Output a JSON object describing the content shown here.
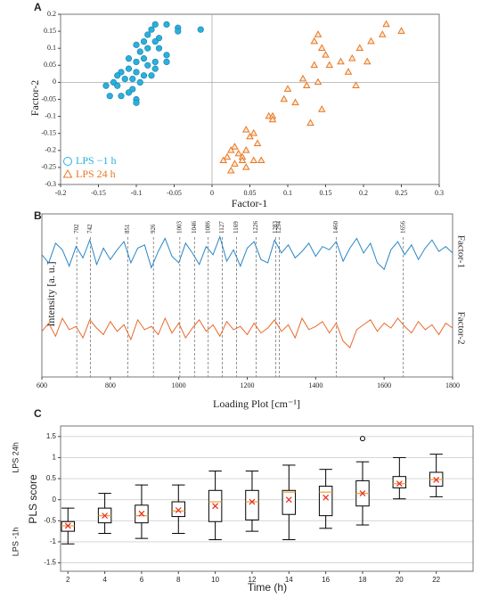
{
  "chart_data": [
    {
      "type": "scatter",
      "panel_label": "A",
      "x_label": "Factor-1",
      "y_label": "Factor-2",
      "xlim": [
        -0.2,
        0.3
      ],
      "xticks": [
        -0.2,
        -0.15,
        -0.1,
        -0.05,
        0,
        0.05,
        0.1,
        0.15,
        0.2,
        0.25,
        0.3
      ],
      "ylim": [
        -0.3,
        0.2
      ],
      "yticks": [
        -0.3,
        -0.25,
        -0.2,
        -0.15,
        -0.1,
        -0.05,
        0,
        0.05,
        0.1,
        0.15,
        0.2
      ],
      "legend": "lower left",
      "series": [
        {
          "name": "LPS −1 h",
          "color": "#2ab0dc",
          "marker": "circle",
          "x": [
            -0.075,
            -0.06,
            -0.045,
            -0.045,
            -0.015,
            -0.08,
            -0.085,
            -0.07,
            -0.075,
            -0.09,
            -0.1,
            -0.085,
            -0.07,
            -0.06,
            -0.095,
            -0.11,
            -0.1,
            -0.085,
            -0.075,
            -0.11,
            -0.1,
            -0.09,
            -0.12,
            -0.125,
            -0.115,
            -0.105,
            -0.095,
            -0.13,
            -0.14,
            -0.125,
            -0.105,
            -0.11,
            -0.12,
            -0.1,
            -0.1,
            -0.135,
            -0.075,
            -0.06,
            -0.09,
            -0.08
          ],
          "y": [
            0.17,
            0.17,
            0.16,
            0.15,
            0.155,
            0.155,
            0.14,
            0.13,
            0.12,
            0.12,
            0.11,
            0.1,
            0.1,
            0.08,
            0.09,
            0.07,
            0.06,
            0.05,
            0.06,
            0.04,
            0.03,
            0.02,
            0.03,
            0.02,
            0.01,
            0.01,
            0.0,
            0.0,
            -0.01,
            -0.01,
            -0.02,
            -0.03,
            -0.04,
            -0.05,
            -0.06,
            -0.04,
            0.04,
            0.06,
            0.07,
            0.02
          ]
        },
        {
          "name": "LPS 24 h",
          "color": "#e87722",
          "marker": "triangle",
          "x": [
            0.03,
            0.025,
            0.035,
            0.02,
            0.03,
            0.015,
            0.025,
            0.045,
            0.04,
            0.04,
            0.045,
            0.055,
            0.065,
            0.06,
            0.05,
            0.055,
            0.045,
            0.075,
            0.08,
            0.08,
            0.095,
            0.11,
            0.1,
            0.12,
            0.125,
            0.13,
            0.145,
            0.14,
            0.135,
            0.145,
            0.15,
            0.155,
            0.17,
            0.18,
            0.19,
            0.195,
            0.21,
            0.23,
            0.225,
            0.25,
            0.205,
            0.14,
            0.135,
            0.185
          ],
          "y": [
            -0.19,
            -0.2,
            -0.21,
            -0.22,
            -0.24,
            -0.23,
            -0.26,
            -0.2,
            -0.22,
            -0.23,
            -0.25,
            -0.23,
            -0.23,
            -0.18,
            -0.16,
            -0.15,
            -0.14,
            -0.1,
            -0.1,
            -0.11,
            -0.05,
            -0.06,
            -0.02,
            0.01,
            -0.01,
            -0.12,
            -0.08,
            0.0,
            0.05,
            0.1,
            0.08,
            0.05,
            0.06,
            0.03,
            -0.01,
            0.1,
            0.12,
            0.17,
            0.14,
            0.15,
            0.06,
            0.14,
            0.12,
            0.07
          ]
        }
      ]
    },
    {
      "type": "line",
      "panel_label": "B",
      "x_label": "Loading Plot [cm⁻¹]",
      "y_label": "Intensity [a. u.]",
      "xlim": [
        600,
        1800
      ],
      "xticks": [
        600,
        800,
        1000,
        1200,
        1400,
        1600,
        1800
      ],
      "ylim": [
        0,
        10
      ],
      "vlines": [
        702,
        742,
        851,
        926,
        1003,
        1046,
        1086,
        1127,
        1169,
        1226,
        1283,
        1294,
        1460,
        1656
      ],
      "x": [
        600,
        620,
        640,
        660,
        680,
        700,
        720,
        740,
        760,
        780,
        800,
        820,
        840,
        860,
        880,
        900,
        920,
        940,
        960,
        980,
        1000,
        1020,
        1040,
        1060,
        1080,
        1100,
        1120,
        1140,
        1160,
        1180,
        1200,
        1220,
        1240,
        1260,
        1280,
        1300,
        1320,
        1340,
        1360,
        1380,
        1400,
        1420,
        1440,
        1460,
        1480,
        1500,
        1520,
        1540,
        1560,
        1580,
        1600,
        1620,
        1640,
        1660,
        1680,
        1700,
        1720,
        1740,
        1760,
        1780,
        1800
      ],
      "series": [
        {
          "name": "Factor-1",
          "color": "#2a86c6",
          "values": [
            7.5,
            7.0,
            8.2,
            7.8,
            6.8,
            8.0,
            7.3,
            8.4,
            6.9,
            7.9,
            7.2,
            7.8,
            8.3,
            7.0,
            7.9,
            8.1,
            6.7,
            7.7,
            8.5,
            7.4,
            7.0,
            8.2,
            7.6,
            6.9,
            8.0,
            7.5,
            8.6,
            7.1,
            7.8,
            6.8,
            7.9,
            8.3,
            7.2,
            7.0,
            8.4,
            7.6,
            8.1,
            7.3,
            7.7,
            8.2,
            7.4,
            8.0,
            7.8,
            8.3,
            7.1,
            7.9,
            8.5,
            7.6,
            8.2,
            7.0,
            6.6,
            7.8,
            8.3,
            7.5,
            8.1,
            7.2,
            7.9,
            8.4,
            7.7,
            8.0,
            7.6
          ]
        },
        {
          "name": "Factor-2",
          "color": "#e8692a",
          "values": [
            2.8,
            3.3,
            2.5,
            3.6,
            2.9,
            3.1,
            2.4,
            3.5,
            3.0,
            2.6,
            3.4,
            2.8,
            3.2,
            2.3,
            3.5,
            2.9,
            3.1,
            2.6,
            3.6,
            2.7,
            3.3,
            2.4,
            3.0,
            3.5,
            2.8,
            3.2,
            2.5,
            3.4,
            2.9,
            3.1,
            2.6,
            3.3,
            2.7,
            3.0,
            3.5,
            2.8,
            3.2,
            2.4,
            3.6,
            2.9,
            3.1,
            3.4,
            2.7,
            3.3,
            2.2,
            1.8,
            2.9,
            3.2,
            3.5,
            2.8,
            3.3,
            3.0,
            3.6,
            3.1,
            2.7,
            3.4,
            2.9,
            3.2,
            2.6,
            3.3,
            3.0
          ]
        }
      ]
    },
    {
      "type": "box",
      "panel_label": "C",
      "x_label": "Time (h)",
      "y_label": "PLS score",
      "xlim": [
        1.6,
        24
      ],
      "xticks": [
        2,
        4,
        6,
        8,
        10,
        12,
        14,
        16,
        18,
        20,
        22
      ],
      "ylim": [
        -1.7,
        1.75
      ],
      "yticks": [
        -1.5,
        -1,
        -0.5,
        0,
        0.5,
        1,
        1.5
      ],
      "grid": true,
      "box_color": "#000000",
      "median_color": "#f0a030",
      "mean_color": "#e8291c",
      "y_annotations": [
        {
          "value": 1,
          "label": "LPS 24h"
        },
        {
          "value": -1,
          "label": "LPS -1h"
        }
      ],
      "boxes": [
        {
          "x": 2,
          "whislo": -1.05,
          "q1": -0.75,
          "med": -0.62,
          "q3": -0.52,
          "whishi": -0.2,
          "mean": -0.62
        },
        {
          "x": 4,
          "whislo": -0.8,
          "q1": -0.55,
          "med": -0.38,
          "q3": -0.2,
          "whishi": 0.15,
          "mean": -0.38
        },
        {
          "x": 6,
          "whislo": -0.92,
          "q1": -0.55,
          "med": -0.38,
          "q3": -0.13,
          "whishi": 0.35,
          "mean": -0.33
        },
        {
          "x": 8,
          "whislo": -0.8,
          "q1": -0.4,
          "med": -0.27,
          "q3": -0.05,
          "whishi": 0.35,
          "mean": -0.25
        },
        {
          "x": 10,
          "whislo": -0.95,
          "q1": -0.52,
          "med": -0.05,
          "q3": 0.22,
          "whishi": 0.68,
          "mean": -0.15
        },
        {
          "x": 12,
          "whislo": -0.75,
          "q1": -0.48,
          "med": -0.05,
          "q3": 0.22,
          "whishi": 0.68,
          "mean": -0.05
        },
        {
          "x": 14,
          "whislo": -0.95,
          "q1": -0.35,
          "med": 0.18,
          "q3": 0.22,
          "whishi": 0.82,
          "mean": 0.0
        },
        {
          "x": 16,
          "whislo": -0.68,
          "q1": -0.38,
          "med": 0.18,
          "q3": 0.32,
          "whishi": 0.72,
          "mean": 0.05
        },
        {
          "x": 18,
          "whislo": -0.6,
          "q1": -0.15,
          "med": 0.15,
          "q3": 0.45,
          "whishi": 0.9,
          "mean": 0.15,
          "fliers": [
            1.45
          ]
        },
        {
          "x": 20,
          "whislo": 0.02,
          "q1": 0.28,
          "med": 0.38,
          "q3": 0.55,
          "whishi": 1.0,
          "mean": 0.38
        },
        {
          "x": 22,
          "whislo": 0.07,
          "q1": 0.32,
          "med": 0.48,
          "q3": 0.65,
          "whishi": 1.08,
          "mean": 0.47
        }
      ]
    }
  ]
}
